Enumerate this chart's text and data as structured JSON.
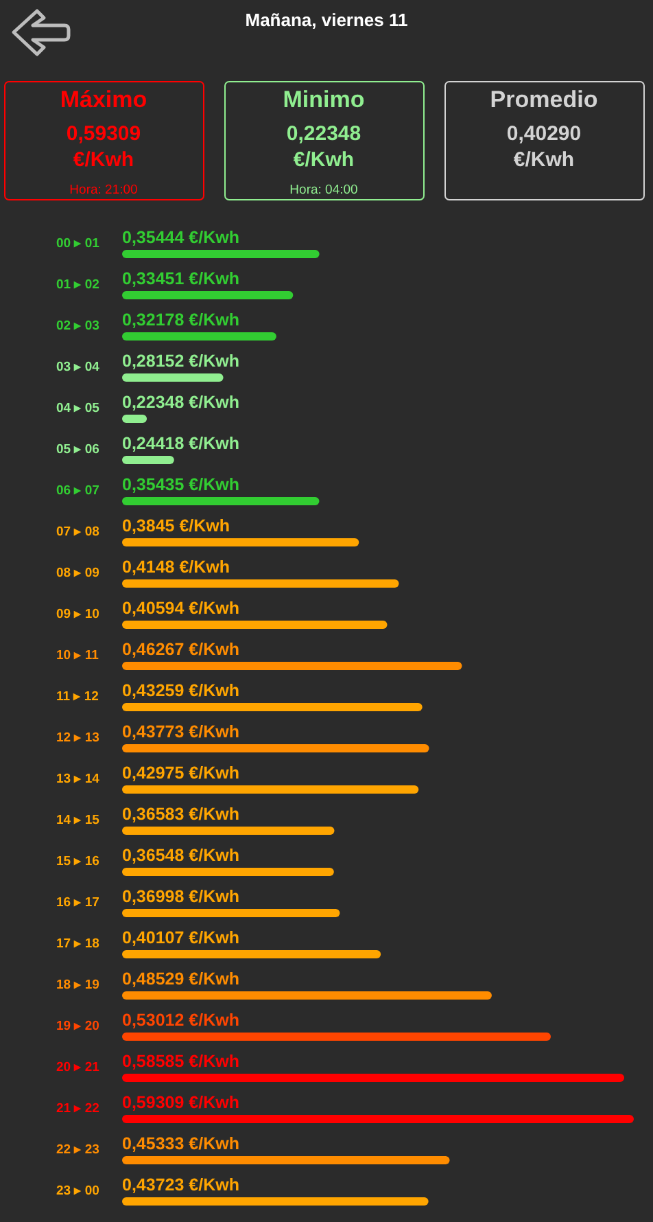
{
  "chart_data": [
    {
      "type": "other",
      "title": "Mañana, viernes 11",
      "categories": [
        "Máximo",
        "Minimo",
        "Promedio"
      ],
      "colors": [
        "#ff0000",
        "#90ee90",
        "#d3d3d3"
      ],
      "annotations": [
        "0,59309",
        "0,22348",
        "0,40290",
        "€/Kwh",
        "€/Kwh",
        "€/Kwh",
        "Hora: 21:00",
        "Hora: 04:00"
      ]
    },
    {
      "type": "bar",
      "orientation": "horizontal",
      "tick_labels": "y",
      "categories": [
        "00 ▸ 01",
        "01 ▸ 02",
        "02 ▸ 03",
        "03 ▸ 04",
        "04 ▸ 05",
        "05 ▸ 06",
        "06 ▸ 07",
        "07 ▸ 08",
        "08 ▸ 09",
        "09 ▸ 10",
        "10 ▸ 11",
        "11 ▸ 12",
        "12 ▸ 13",
        "13 ▸ 14",
        "14 ▸ 15",
        "15 ▸ 16",
        "16 ▸ 17",
        "17 ▸ 18",
        "18 ▸ 19",
        "19 ▸ 20",
        "20 ▸ 21",
        "21 ▸ 22",
        "22 ▸ 23",
        "23 ▸ 00"
      ],
      "values": [
        0.35444,
        0.33451,
        0.32178,
        0.28152,
        0.22348,
        0.24418,
        0.35435,
        0.3845,
        0.4148,
        0.40594,
        0.46267,
        0.43259,
        0.43773,
        0.42975,
        0.36583,
        0.36548,
        0.36998,
        0.40107,
        0.48529,
        0.53012,
        0.58585,
        0.59309,
        0.45333,
        0.43723
      ],
      "colors": [
        "#32cd32",
        "#32cd32",
        "#32cd32",
        "#90ee90",
        "#90ee90",
        "#90ee90",
        "#32cd32",
        "#ffa500",
        "#ffa500",
        "#ffa500",
        "#ff8c00",
        "#ffa500",
        "#ff8c00",
        "#ffa500",
        "#ffa500",
        "#ffa500",
        "#ffa500",
        "#ffa500",
        "#ff8c00",
        "#ff4500",
        "#ff0000",
        "#ff0000",
        "#ff8c00",
        "#ffa500"
      ],
      "value_labels": [
        "0,35444 €/Kwh",
        "0,33451 €/Kwh",
        "0,32178 €/Kwh",
        "0,28152 €/Kwh",
        "0,22348 €/Kwh",
        "0,24418 €/Kwh",
        "0,35435 €/Kwh",
        "0,3845 €/Kwh",
        "0,4148 €/Kwh",
        "0,40594 €/Kwh",
        "0,46267 €/Kwh",
        "0,43259 €/Kwh",
        "0,43773 €/Kwh",
        "0,42975 €/Kwh",
        "0,36583 €/Kwh",
        "0,36548 €/Kwh",
        "0,36998 €/Kwh",
        "0,40107 €/Kwh",
        "0,48529 €/Kwh",
        "0,53012 €/Kwh",
        "0,58585 €/Kwh",
        "0,59309 €/Kwh",
        "0,45333 €/Kwh",
        "0,43723 €/Kwh"
      ],
      "xlim": [
        0.2047,
        0.5931
      ]
    }
  ]
}
